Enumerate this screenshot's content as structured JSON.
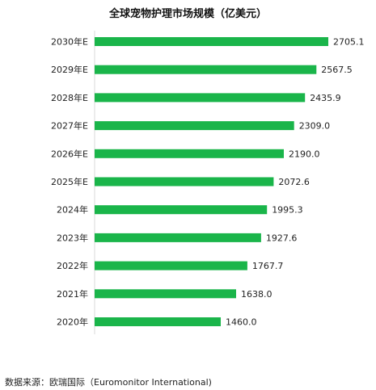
{
  "chart_data": {
    "type": "bar",
    "orientation": "horizontal",
    "title": "全球宠物护理市场规模（亿美元）",
    "categories": [
      "2030年E",
      "2029年E",
      "2028年E",
      "2027年E",
      "2026年E",
      "2025年E",
      "2024年",
      "2023年",
      "2022年",
      "2021年",
      "2020年"
    ],
    "values": [
      2705.1,
      2567.5,
      2435.9,
      2309.0,
      2190.0,
      2072.6,
      1995.3,
      1927.6,
      1767.7,
      1638.0,
      1460.0
    ],
    "value_labels": [
      "2705.1",
      "2567.5",
      "2435.9",
      "2309.0",
      "2190.0",
      "2072.6",
      "1995.3",
      "1927.6",
      "1767.7",
      "1638.0",
      "1460.0"
    ],
    "xlim": [
      0,
      2705.1
    ],
    "grid": false,
    "legend": "none",
    "bar_color": "#1ab54a"
  },
  "source": "数据来源：欧瑞国际（Euromonitor International)"
}
